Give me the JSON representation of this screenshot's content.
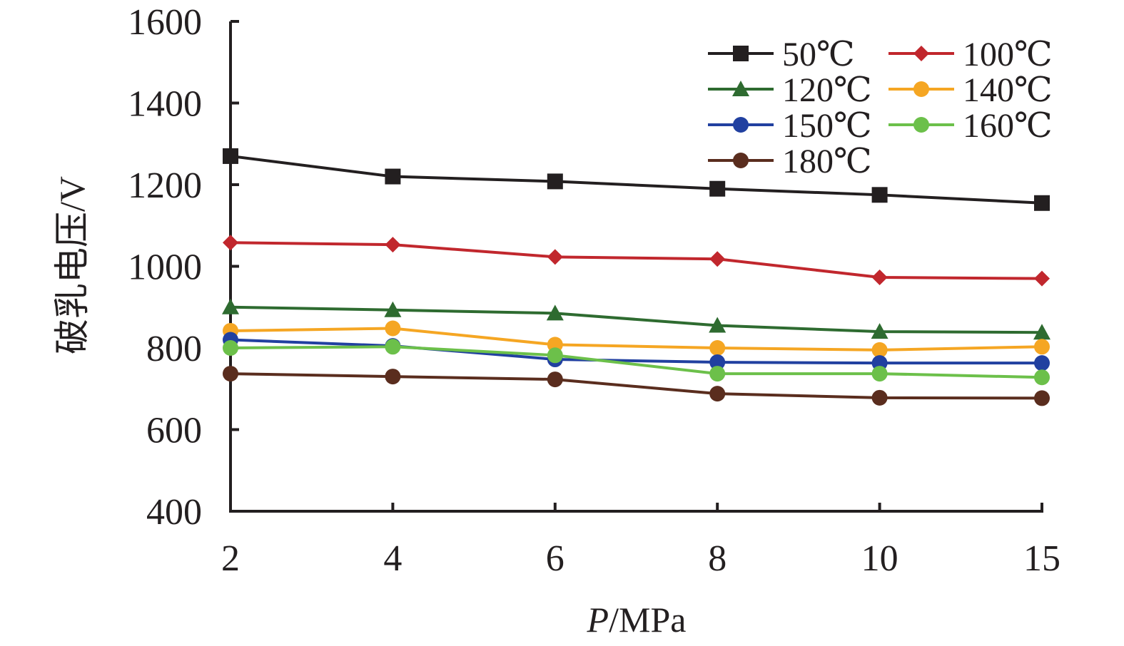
{
  "chart_data": {
    "type": "line",
    "title": "",
    "xlabel_italic": "P",
    "xlabel_unit": "/MPa",
    "ylabel": "破乳电压/V",
    "categories": [
      "2",
      "4",
      "6",
      "8",
      "10",
      "15"
    ],
    "ylim": [
      400,
      1600
    ],
    "yticks": [
      400,
      600,
      800,
      1000,
      1200,
      1400,
      1600
    ],
    "grid": false,
    "legend": "top-right",
    "series": [
      {
        "name": "50℃",
        "color": "#231f20",
        "marker": "square",
        "values": [
          1270,
          1220,
          1208,
          1190,
          1175,
          1155
        ]
      },
      {
        "name": "100℃",
        "color": "#c1272d",
        "marker": "diamond",
        "values": [
          1058,
          1053,
          1023,
          1018,
          973,
          970
        ]
      },
      {
        "name": "120℃",
        "color": "#2e6b30",
        "marker": "triangle",
        "values": [
          900,
          893,
          885,
          855,
          840,
          838
        ]
      },
      {
        "name": "140℃",
        "color": "#f5a623",
        "marker": "circle",
        "values": [
          842,
          848,
          808,
          800,
          795,
          803
        ]
      },
      {
        "name": "150℃",
        "color": "#2140a0",
        "marker": "circle",
        "values": [
          820,
          805,
          772,
          765,
          763,
          763
        ]
      },
      {
        "name": "160℃",
        "color": "#6cc04a",
        "marker": "circle",
        "values": [
          800,
          803,
          782,
          737,
          737,
          728
        ]
      },
      {
        "name": "180℃",
        "color": "#5a2d1e",
        "marker": "circle",
        "values": [
          737,
          730,
          723,
          688,
          678,
          677
        ]
      }
    ]
  }
}
